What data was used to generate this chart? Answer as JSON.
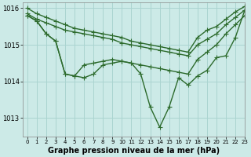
{
  "bg_color": "#cceae7",
  "grid_color": "#aad4d0",
  "line_color": "#2d6b2d",
  "marker": "+",
  "markersize": 4,
  "linewidth": 1.0,
  "title": "Graphe pression niveau de la mer (hPa)",
  "title_fontsize": 7,
  "xlim": [
    -0.5,
    23
  ],
  "ylim": [
    1012.5,
    1016.15
  ],
  "yticks": [
    1013,
    1014,
    1015,
    1016
  ],
  "xticks": [
    0,
    1,
    2,
    3,
    4,
    5,
    6,
    7,
    8,
    9,
    10,
    11,
    12,
    13,
    14,
    15,
    16,
    17,
    18,
    19,
    20,
    21,
    22,
    23
  ],
  "series": [
    [
      1016.0,
      1015.85,
      1015.75,
      1015.65,
      1015.55,
      1015.45,
      1015.4,
      1015.35,
      1015.3,
      1015.25,
      1015.2,
      1015.1,
      1015.05,
      1015.0,
      1014.95,
      1014.9,
      1014.85,
      1014.8,
      1015.2,
      1015.4,
      1015.5,
      1015.7,
      1015.9,
      1016.05
    ],
    [
      1015.85,
      1015.7,
      1015.6,
      1015.5,
      1015.4,
      1015.35,
      1015.3,
      1015.25,
      1015.2,
      1015.15,
      1015.05,
      1015.0,
      1014.95,
      1014.9,
      1014.85,
      1014.8,
      1014.75,
      1014.7,
      1015.0,
      1015.15,
      1015.3,
      1015.55,
      1015.75,
      1015.95
    ],
    [
      1015.8,
      1015.65,
      1015.3,
      1015.1,
      1014.2,
      1014.15,
      1014.1,
      1014.2,
      1014.45,
      1014.5,
      1014.55,
      1014.5,
      1014.45,
      1014.4,
      1014.35,
      1014.3,
      1014.25,
      1014.2,
      1014.6,
      1014.8,
      1015.0,
      1015.3,
      1015.55,
      1015.8
    ],
    [
      1015.8,
      1015.65,
      1015.3,
      1015.1,
      1014.2,
      1014.15,
      1014.45,
      1014.5,
      1014.55,
      1014.6,
      1014.55,
      1014.5,
      1014.2,
      1013.3,
      1012.75,
      1013.3,
      1014.1,
      1013.9,
      1014.15,
      1014.3,
      1014.65,
      1014.7,
      1015.2,
      1015.95
    ]
  ]
}
